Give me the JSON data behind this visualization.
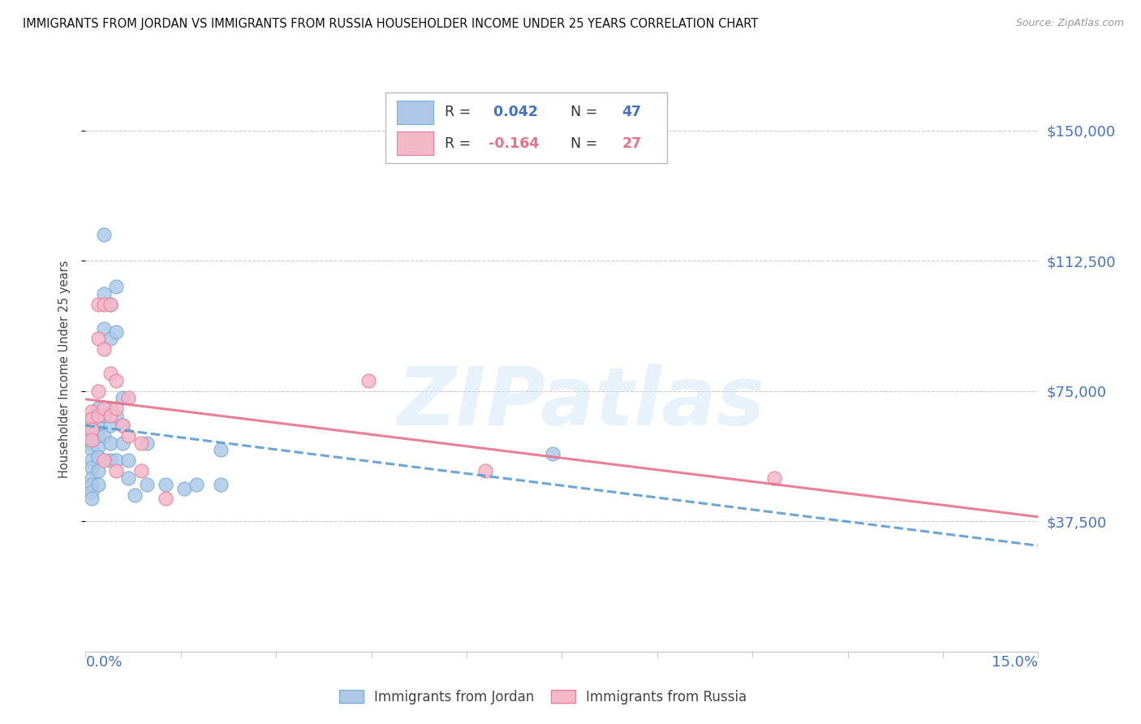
{
  "title": "IMMIGRANTS FROM JORDAN VS IMMIGRANTS FROM RUSSIA HOUSEHOLDER INCOME UNDER 25 YEARS CORRELATION CHART",
  "source": "Source: ZipAtlas.com",
  "ylabel": "Householder Income Under 25 years",
  "ylabel_ticks": [
    "$150,000",
    "$112,500",
    "$75,000",
    "$37,500"
  ],
  "ylabel_values": [
    150000,
    112500,
    75000,
    37500
  ],
  "ylim_max": 162500,
  "xlim_max": 0.155,
  "jordan_color": "#aec9e8",
  "jordan_edge": "#7aafd4",
  "russia_color": "#f5b8c8",
  "russia_edge": "#e87fa0",
  "jordan_trend_color": "#5b9bd5",
  "russia_trend_color": "#e8718a",
  "label_color": "#4472c4",
  "russia_label_color": "#e8718a",
  "jordan_R": 0.042,
  "jordan_N": 47,
  "russia_R": -0.164,
  "russia_N": 27,
  "watermark": "ZIPatlas",
  "jordan_label": "Immigrants from Jordan",
  "russia_label": "Immigrants from Russia",
  "jordan_points_x": [
    0.001,
    0.001,
    0.001,
    0.001,
    0.001,
    0.001,
    0.001,
    0.001,
    0.001,
    0.001,
    0.001,
    0.002,
    0.002,
    0.002,
    0.002,
    0.002,
    0.002,
    0.002,
    0.003,
    0.003,
    0.003,
    0.003,
    0.003,
    0.004,
    0.004,
    0.004,
    0.004,
    0.004,
    0.004,
    0.005,
    0.005,
    0.005,
    0.005,
    0.006,
    0.006,
    0.006,
    0.007,
    0.007,
    0.008,
    0.01,
    0.01,
    0.013,
    0.016,
    0.018,
    0.022,
    0.022,
    0.076
  ],
  "jordan_points_y": [
    67000,
    65000,
    63000,
    60000,
    58000,
    55000,
    53000,
    50000,
    48000,
    46000,
    44000,
    70000,
    65000,
    62000,
    59000,
    56000,
    52000,
    48000,
    120000,
    103000,
    93000,
    68000,
    62000,
    100000,
    90000,
    70000,
    65000,
    60000,
    55000,
    105000,
    92000,
    68000,
    55000,
    73000,
    65000,
    60000,
    55000,
    50000,
    45000,
    60000,
    48000,
    48000,
    47000,
    48000,
    58000,
    48000,
    57000
  ],
  "russia_points_x": [
    0.001,
    0.001,
    0.001,
    0.001,
    0.002,
    0.002,
    0.002,
    0.002,
    0.003,
    0.003,
    0.003,
    0.004,
    0.004,
    0.004,
    0.005,
    0.005,
    0.005,
    0.006,
    0.007,
    0.007,
    0.009,
    0.009,
    0.013,
    0.046,
    0.065,
    0.112,
    0.003
  ],
  "russia_points_y": [
    69000,
    67000,
    64000,
    61000,
    100000,
    90000,
    75000,
    68000,
    100000,
    87000,
    70000,
    100000,
    80000,
    68000,
    78000,
    70000,
    52000,
    65000,
    73000,
    62000,
    60000,
    52000,
    44000,
    78000,
    52000,
    50000,
    55000
  ]
}
